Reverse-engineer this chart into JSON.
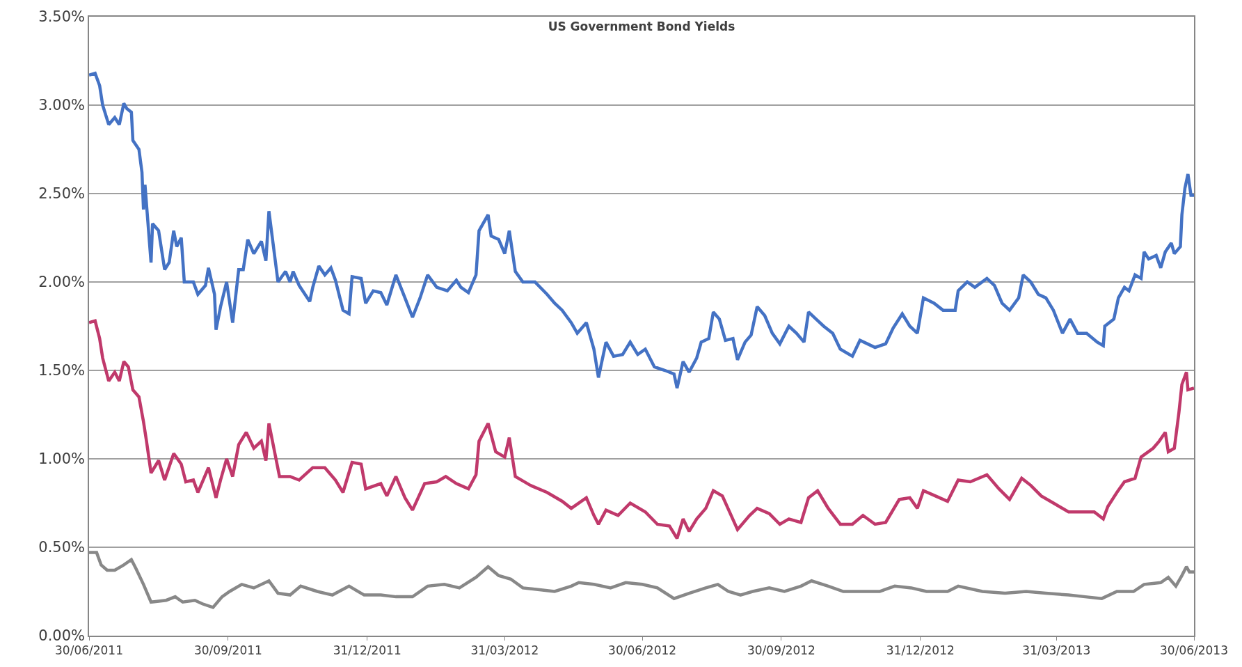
{
  "chart_data": {
    "type": "line",
    "title": "US Government Bond Yields",
    "xlim": [
      "2011-06-30",
      "2013-06-30"
    ],
    "xticks": [
      {
        "value": "2011-06-30",
        "label": "30/06/2011"
      },
      {
        "value": "2011-09-30",
        "label": "30/09/2011"
      },
      {
        "value": "2011-12-31",
        "label": "31/12/2011"
      },
      {
        "value": "2012-03-31",
        "label": "31/03/2012"
      },
      {
        "value": "2012-06-30",
        "label": "30/06/2012"
      },
      {
        "value": "2012-09-30",
        "label": "30/09/2012"
      },
      {
        "value": "2012-12-31",
        "label": "31/12/2012"
      },
      {
        "value": "2013-03-31",
        "label": "31/03/2013"
      },
      {
        "value": "2013-06-30",
        "label": "30/06/2013"
      }
    ],
    "ylim": [
      0,
      3.5
    ],
    "yticks": [
      {
        "value": 0,
        "label": "0.00%"
      },
      {
        "value": 0.5,
        "label": "0.50%"
      },
      {
        "value": 1,
        "label": "1.00%"
      },
      {
        "value": 1.5,
        "label": "1.50%"
      },
      {
        "value": 2,
        "label": "2.00%"
      },
      {
        "value": 2.5,
        "label": "2.50%"
      },
      {
        "value": 3,
        "label": "3.00%"
      },
      {
        "value": 3.5,
        "label": "3.50%"
      }
    ],
    "grid": "y",
    "marker": "none",
    "line_style": "solid",
    "series": [
      {
        "color": "#4472c4",
        "x": [
          "2011-06-30",
          "2011-07-04",
          "2011-07-07",
          "2011-07-09",
          "2011-07-13",
          "2011-07-17",
          "2011-07-20",
          "2011-07-23",
          "2011-07-25",
          "2011-07-28",
          "2011-07-29",
          "2011-08-02",
          "2011-08-04",
          "2011-08-05",
          "2011-08-06",
          "2011-08-10",
          "2011-08-11",
          "2011-08-15",
          "2011-08-19",
          "2011-08-22",
          "2011-08-25",
          "2011-08-27",
          "2011-08-30",
          "2011-09-01",
          "2011-09-07",
          "2011-09-10",
          "2011-09-15",
          "2011-09-17",
          "2011-09-21",
          "2011-09-22",
          "2011-09-25",
          "2011-09-29",
          "2011-10-03",
          "2011-10-07",
          "2011-10-10",
          "2011-10-13",
          "2011-10-17",
          "2011-10-22",
          "2011-10-25",
          "2011-10-27",
          "2011-11-02",
          "2011-11-07",
          "2011-11-10",
          "2011-11-12",
          "2011-11-16",
          "2011-11-23",
          "2011-11-25",
          "2011-11-29",
          "2011-12-03",
          "2011-12-07",
          "2011-12-10",
          "2011-12-15",
          "2011-12-19",
          "2011-12-21",
          "2011-12-27",
          "2011-12-30",
          "2012-01-04",
          "2012-01-09",
          "2012-01-13",
          "2012-01-19",
          "2012-01-25",
          "2012-01-30",
          "2012-02-04",
          "2012-02-09",
          "2012-02-15",
          "2012-02-22",
          "2012-02-28",
          "2012-03-02",
          "2012-03-07",
          "2012-03-12",
          "2012-03-14",
          "2012-03-20",
          "2012-03-22",
          "2012-03-27",
          "2012-03-31",
          "2012-04-03",
          "2012-04-07",
          "2012-04-12",
          "2012-04-20",
          "2012-04-28",
          "2012-05-03",
          "2012-05-08",
          "2012-05-14",
          "2012-05-18",
          "2012-05-24",
          "2012-05-29",
          "2012-06-01",
          "2012-06-06",
          "2012-06-11",
          "2012-06-17",
          "2012-06-22",
          "2012-06-27",
          "2012-07-02",
          "2012-07-08",
          "2012-07-15",
          "2012-07-21",
          "2012-07-23",
          "2012-07-27",
          "2012-07-31",
          "2012-08-05",
          "2012-08-08",
          "2012-08-13",
          "2012-08-16",
          "2012-08-20",
          "2012-08-24",
          "2012-08-29",
          "2012-09-01",
          "2012-09-06",
          "2012-09-10",
          "2012-09-14",
          "2012-09-19",
          "2012-09-24",
          "2012-09-29",
          "2012-10-05",
          "2012-10-10",
          "2012-10-15",
          "2012-10-18",
          "2012-10-23",
          "2012-10-28",
          "2012-11-03",
          "2012-11-08",
          "2012-11-16",
          "2012-11-21",
          "2012-11-26",
          "2012-12-01",
          "2012-12-08",
          "2012-12-13",
          "2012-12-19",
          "2012-12-24",
          "2012-12-29",
          "2013-01-02",
          "2013-01-09",
          "2013-01-15",
          "2013-01-23",
          "2013-01-25",
          "2013-01-31",
          "2013-02-05",
          "2013-02-13",
          "2013-02-18",
          "2013-02-23",
          "2013-02-28",
          "2013-03-06",
          "2013-03-09",
          "2013-03-14",
          "2013-03-19",
          "2013-03-24",
          "2013-03-29",
          "2013-04-04",
          "2013-04-09",
          "2013-04-14",
          "2013-04-20",
          "2013-04-27",
          "2013-05-01",
          "2013-05-02",
          "2013-05-08",
          "2013-05-11",
          "2013-05-15",
          "2013-05-18",
          "2013-05-22",
          "2013-05-26",
          "2013-05-28",
          "2013-05-31",
          "2013-06-05",
          "2013-06-08",
          "2013-06-11",
          "2013-06-15",
          "2013-06-17",
          "2013-06-21",
          "2013-06-22",
          "2013-06-24",
          "2013-06-26",
          "2013-06-28",
          "2013-06-30"
        ],
        "values": [
          3.17,
          3.18,
          3.11,
          3.0,
          2.89,
          2.93,
          2.89,
          3.01,
          2.98,
          2.96,
          2.8,
          2.75,
          2.62,
          2.41,
          2.55,
          2.11,
          2.33,
          2.29,
          2.07,
          2.11,
          2.29,
          2.2,
          2.25,
          2.0,
          2.0,
          1.93,
          1.98,
          2.08,
          1.93,
          1.73,
          1.86,
          2.0,
          1.77,
          2.07,
          2.07,
          2.24,
          2.16,
          2.23,
          2.12,
          2.4,
          2.0,
          2.06,
          2.0,
          2.06,
          1.98,
          1.89,
          1.97,
          2.09,
          2.04,
          2.08,
          2.01,
          1.84,
          1.82,
          2.03,
          2.02,
          1.88,
          1.95,
          1.94,
          1.87,
          2.04,
          1.91,
          1.8,
          1.91,
          2.04,
          1.97,
          1.95,
          2.01,
          1.97,
          1.94,
          2.04,
          2.29,
          2.38,
          2.26,
          2.24,
          2.16,
          2.29,
          2.06,
          2.0,
          2.0,
          1.93,
          1.88,
          1.84,
          1.77,
          1.71,
          1.77,
          1.62,
          1.46,
          1.66,
          1.58,
          1.59,
          1.66,
          1.59,
          1.62,
          1.52,
          1.5,
          1.48,
          1.4,
          1.55,
          1.49,
          1.57,
          1.66,
          1.68,
          1.83,
          1.79,
          1.67,
          1.68,
          1.56,
          1.66,
          1.7,
          1.86,
          1.81,
          1.71,
          1.65,
          1.75,
          1.71,
          1.66,
          1.83,
          1.79,
          1.75,
          1.71,
          1.62,
          1.58,
          1.67,
          1.65,
          1.63,
          1.65,
          1.74,
          1.82,
          1.75,
          1.71,
          1.91,
          1.88,
          1.84,
          1.84,
          1.95,
          2.0,
          1.97,
          2.02,
          1.98,
          1.88,
          1.84,
          1.91,
          2.04,
          2.0,
          1.93,
          1.91,
          1.84,
          1.71,
          1.79,
          1.71,
          1.71,
          1.66,
          1.64,
          1.75,
          1.79,
          1.91,
          1.97,
          1.95,
          2.04,
          2.02,
          2.17,
          2.13,
          2.15,
          2.08,
          2.17,
          2.22,
          2.16,
          2.2,
          2.38,
          2.53,
          2.61,
          2.49,
          2.49
        ]
      },
      {
        "color": "#c0396b",
        "x": [
          "2011-06-30",
          "2011-07-04",
          "2011-07-07",
          "2011-07-09",
          "2011-07-13",
          "2011-07-17",
          "2011-07-20",
          "2011-07-23",
          "2011-07-26",
          "2011-07-29",
          "2011-08-02",
          "2011-08-05",
          "2011-08-07",
          "2011-08-10",
          "2011-08-15",
          "2011-08-19",
          "2011-08-25",
          "2011-08-30",
          "2011-09-02",
          "2011-09-07",
          "2011-09-10",
          "2011-09-17",
          "2011-09-22",
          "2011-09-25",
          "2011-09-29",
          "2011-10-03",
          "2011-10-07",
          "2011-10-12",
          "2011-10-17",
          "2011-10-22",
          "2011-10-25",
          "2011-10-27",
          "2011-11-03",
          "2011-11-10",
          "2011-11-16",
          "2011-11-25",
          "2011-12-03",
          "2011-12-10",
          "2011-12-15",
          "2011-12-21",
          "2011-12-27",
          "2011-12-30",
          "2012-01-09",
          "2012-01-13",
          "2012-01-19",
          "2012-01-25",
          "2012-01-30",
          "2012-02-07",
          "2012-02-15",
          "2012-02-21",
          "2012-02-28",
          "2012-03-07",
          "2012-03-12",
          "2012-03-14",
          "2012-03-20",
          "2012-03-25",
          "2012-03-31",
          "2012-04-03",
          "2012-04-07",
          "2012-04-17",
          "2012-04-28",
          "2012-05-08",
          "2012-05-14",
          "2012-05-24",
          "2012-05-29",
          "2012-06-01",
          "2012-06-06",
          "2012-06-14",
          "2012-06-22",
          "2012-07-02",
          "2012-07-10",
          "2012-07-18",
          "2012-07-23",
          "2012-07-27",
          "2012-07-31",
          "2012-08-05",
          "2012-08-11",
          "2012-08-16",
          "2012-08-22",
          "2012-09-01",
          "2012-09-09",
          "2012-09-14",
          "2012-09-22",
          "2012-09-29",
          "2012-10-05",
          "2012-10-13",
          "2012-10-18",
          "2012-10-24",
          "2012-10-31",
          "2012-11-08",
          "2012-11-16",
          "2012-11-23",
          "2012-12-01",
          "2012-12-08",
          "2012-12-17",
          "2012-12-24",
          "2012-12-29",
          "2013-01-02",
          "2013-01-10",
          "2013-01-18",
          "2013-01-25",
          "2013-02-02",
          "2013-02-13",
          "2013-02-21",
          "2013-02-28",
          "2013-03-08",
          "2013-03-14",
          "2013-03-21",
          "2013-03-29",
          "2013-04-08",
          "2013-04-14",
          "2013-04-25",
          "2013-05-01",
          "2013-05-04",
          "2013-05-10",
          "2013-05-15",
          "2013-05-22",
          "2013-05-26",
          "2013-06-03",
          "2013-06-07",
          "2013-06-11",
          "2013-06-13",
          "2013-06-17",
          "2013-06-20",
          "2013-06-22",
          "2013-06-25",
          "2013-06-26",
          "2013-06-30"
        ],
        "values": [
          1.77,
          1.78,
          1.68,
          1.57,
          1.44,
          1.49,
          1.44,
          1.55,
          1.52,
          1.39,
          1.35,
          1.21,
          1.1,
          0.92,
          0.99,
          0.88,
          1.03,
          0.97,
          0.87,
          0.88,
          0.81,
          0.95,
          0.78,
          0.88,
          1.0,
          0.9,
          1.08,
          1.15,
          1.06,
          1.1,
          0.99,
          1.2,
          0.9,
          0.9,
          0.88,
          0.95,
          0.95,
          0.88,
          0.81,
          0.98,
          0.97,
          0.83,
          0.86,
          0.79,
          0.9,
          0.78,
          0.71,
          0.86,
          0.87,
          0.9,
          0.86,
          0.83,
          0.91,
          1.1,
          1.2,
          1.04,
          1.01,
          1.12,
          0.9,
          0.85,
          0.81,
          0.76,
          0.72,
          0.78,
          0.68,
          0.63,
          0.71,
          0.68,
          0.75,
          0.7,
          0.63,
          0.62,
          0.55,
          0.66,
          0.59,
          0.66,
          0.72,
          0.82,
          0.79,
          0.6,
          0.68,
          0.72,
          0.69,
          0.63,
          0.66,
          0.64,
          0.78,
          0.82,
          0.72,
          0.63,
          0.63,
          0.68,
          0.63,
          0.64,
          0.77,
          0.78,
          0.72,
          0.82,
          0.79,
          0.76,
          0.88,
          0.87,
          0.91,
          0.83,
          0.77,
          0.89,
          0.85,
          0.79,
          0.75,
          0.7,
          0.7,
          0.7,
          0.66,
          0.73,
          0.81,
          0.87,
          0.89,
          1.01,
          1.06,
          1.1,
          1.15,
          1.04,
          1.06,
          1.26,
          1.42,
          1.49,
          1.39,
          1.4
        ]
      },
      {
        "color": "#888888",
        "x": [
          "2011-06-30",
          "2011-07-05",
          "2011-07-08",
          "2011-07-12",
          "2011-07-17",
          "2011-07-23",
          "2011-07-28",
          "2011-07-31",
          "2011-08-05",
          "2011-08-10",
          "2011-08-20",
          "2011-08-26",
          "2011-08-31",
          "2011-09-08",
          "2011-09-13",
          "2011-09-20",
          "2011-09-26",
          "2011-10-01",
          "2011-10-09",
          "2011-10-17",
          "2011-10-27",
          "2011-11-02",
          "2011-11-10",
          "2011-11-17",
          "2011-11-28",
          "2011-12-08",
          "2011-12-19",
          "2011-12-29",
          "2012-01-09",
          "2012-01-19",
          "2012-01-30",
          "2012-02-09",
          "2012-02-20",
          "2012-03-01",
          "2012-03-12",
          "2012-03-20",
          "2012-03-27",
          "2012-04-04",
          "2012-04-12",
          "2012-04-23",
          "2012-05-03",
          "2012-05-14",
          "2012-05-19",
          "2012-05-29",
          "2012-06-09",
          "2012-06-19",
          "2012-06-30",
          "2012-07-10",
          "2012-07-21",
          "2012-07-31",
          "2012-08-11",
          "2012-08-19",
          "2012-08-26",
          "2012-09-03",
          "2012-09-11",
          "2012-09-22",
          "2012-10-02",
          "2012-10-13",
          "2012-10-20",
          "2012-10-31",
          "2012-11-10",
          "2012-11-23",
          "2012-12-04",
          "2012-12-14",
          "2012-12-25",
          "2013-01-04",
          "2013-01-18",
          "2013-01-25",
          "2013-02-10",
          "2013-02-25",
          "2013-03-11",
          "2013-03-24",
          "2013-04-08",
          "2013-04-19",
          "2013-04-30",
          "2013-05-10",
          "2013-05-21",
          "2013-05-28",
          "2013-06-08",
          "2013-06-13",
          "2013-06-18",
          "2013-06-22",
          "2013-06-25",
          "2013-06-27",
          "2013-06-30"
        ],
        "values": [
          0.47,
          0.47,
          0.4,
          0.37,
          0.37,
          0.4,
          0.43,
          0.38,
          0.29,
          0.19,
          0.2,
          0.22,
          0.19,
          0.2,
          0.18,
          0.16,
          0.22,
          0.25,
          0.29,
          0.27,
          0.31,
          0.24,
          0.23,
          0.28,
          0.25,
          0.23,
          0.28,
          0.23,
          0.23,
          0.22,
          0.22,
          0.28,
          0.29,
          0.27,
          0.33,
          0.39,
          0.34,
          0.32,
          0.27,
          0.26,
          0.25,
          0.28,
          0.3,
          0.29,
          0.27,
          0.3,
          0.29,
          0.27,
          0.21,
          0.24,
          0.27,
          0.29,
          0.25,
          0.23,
          0.25,
          0.27,
          0.25,
          0.28,
          0.31,
          0.28,
          0.25,
          0.25,
          0.25,
          0.28,
          0.27,
          0.25,
          0.25,
          0.28,
          0.25,
          0.24,
          0.25,
          0.24,
          0.23,
          0.22,
          0.21,
          0.25,
          0.25,
          0.29,
          0.3,
          0.33,
          0.28,
          0.34,
          0.39,
          0.36,
          0.36
        ]
      }
    ]
  }
}
